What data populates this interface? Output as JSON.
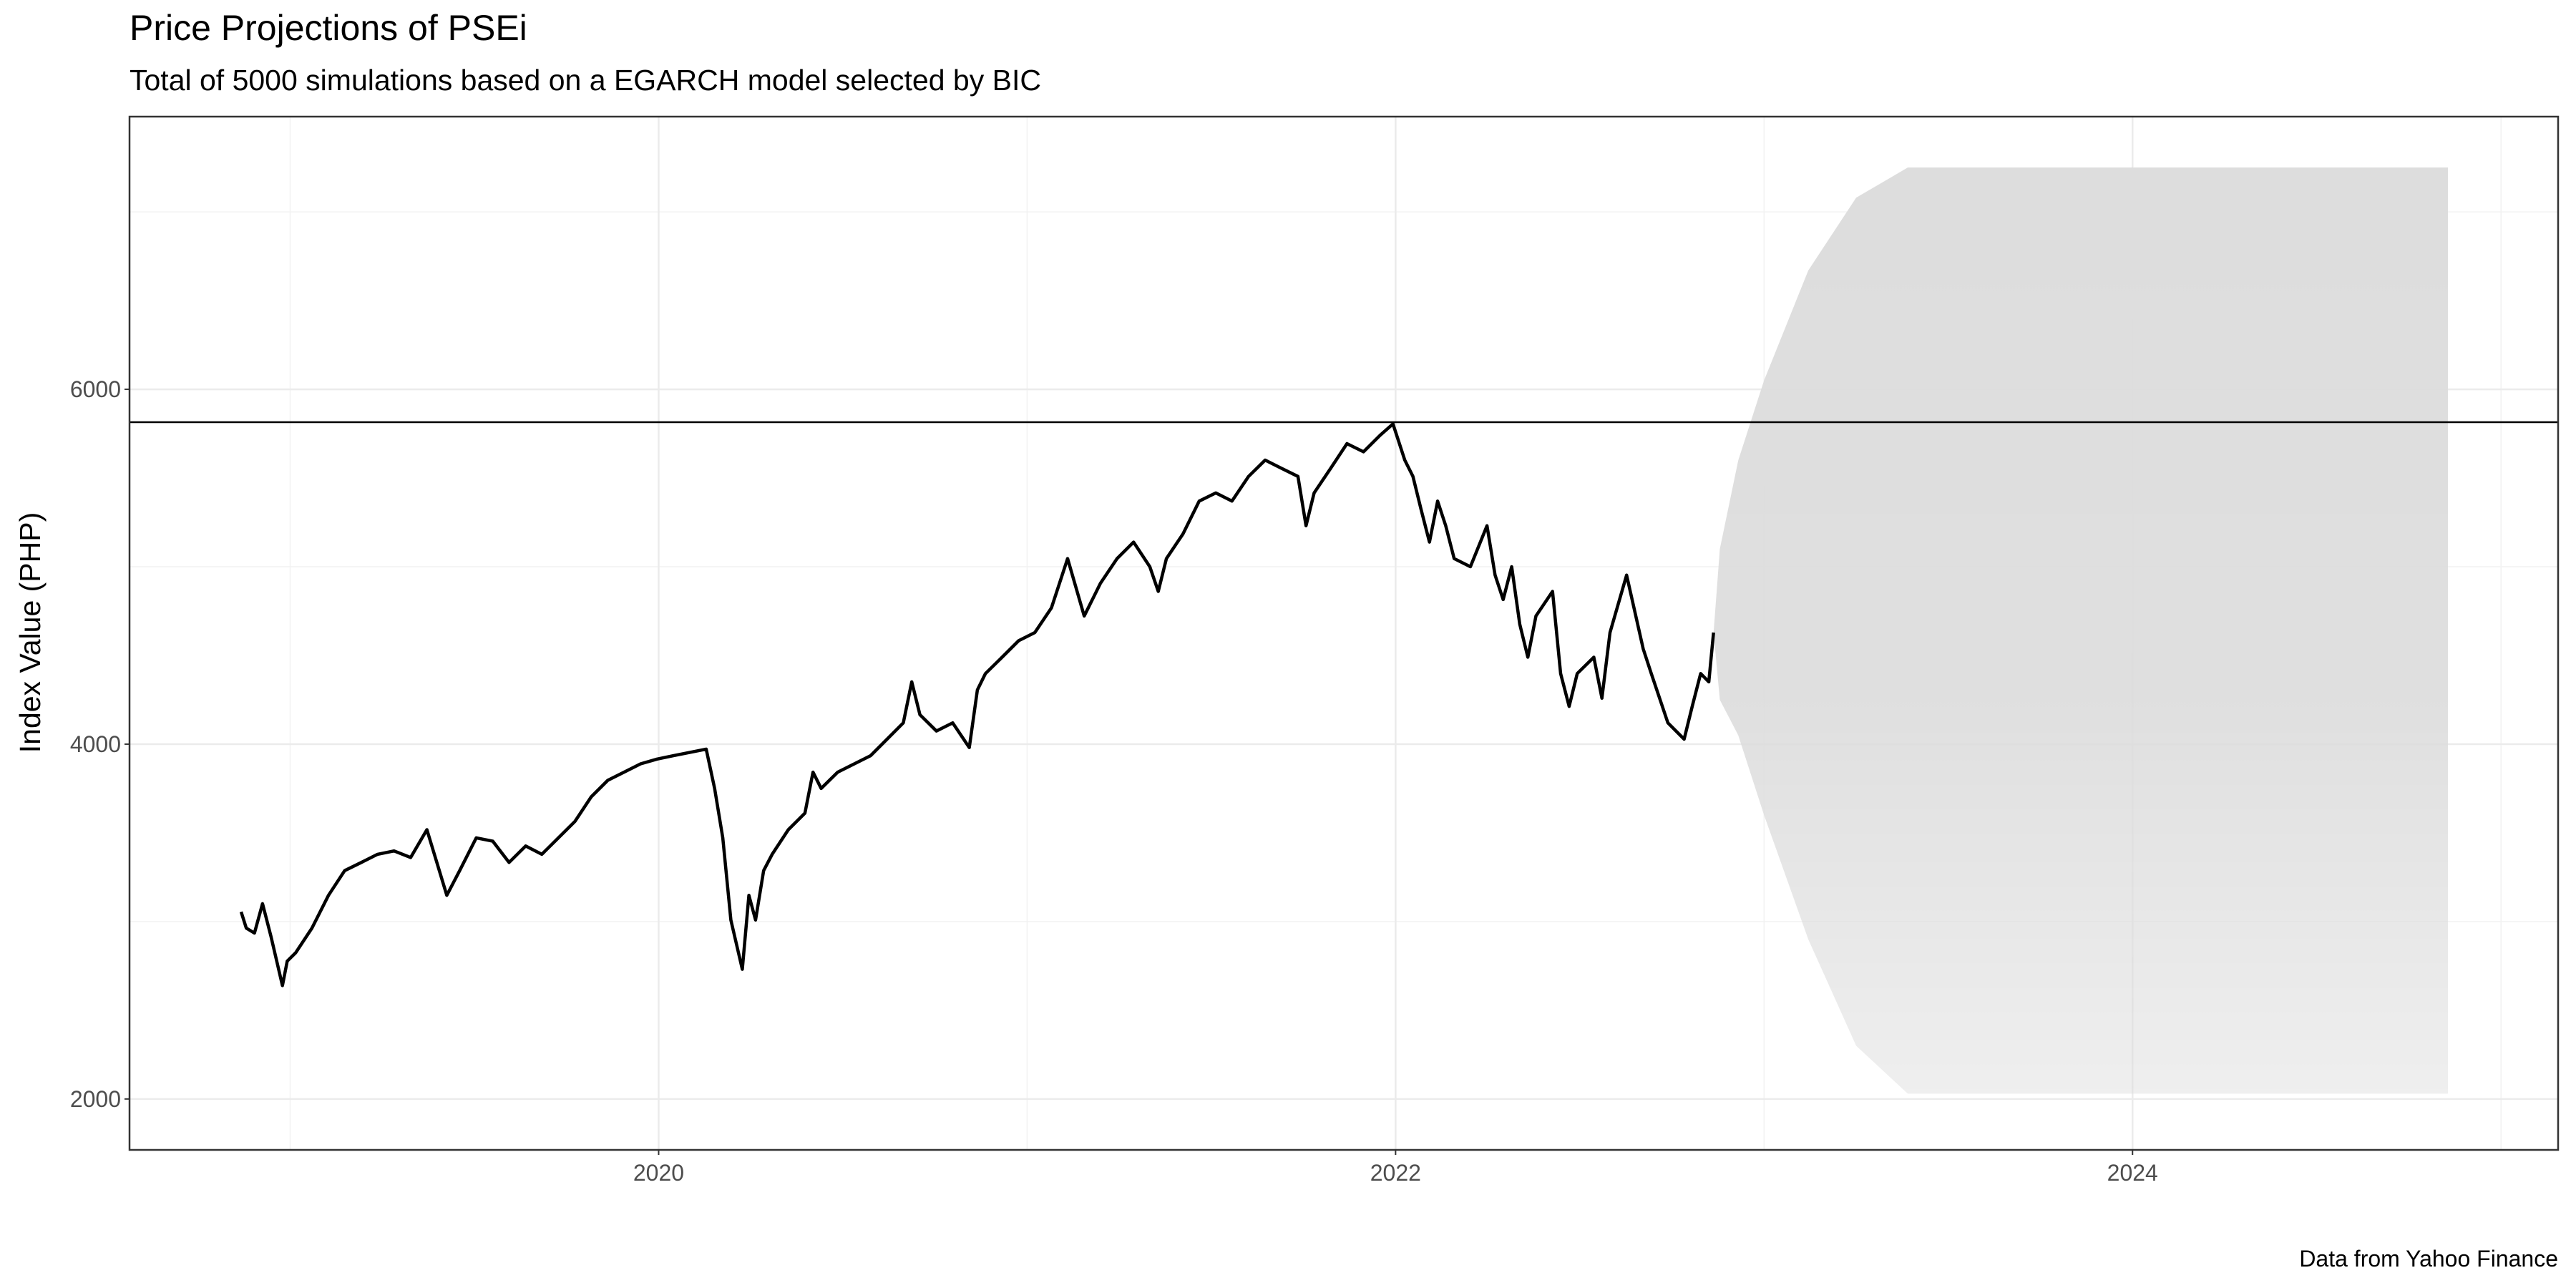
{
  "chart_data": {
    "type": "line",
    "title": "Price Projections of PSEi",
    "subtitle": "Total of 5000 simulations based on a EGARCH model selected by BIC",
    "y_label": "Index Value (PHP)",
    "caption": "Data from Yahoo Finance",
    "xlim": [
      2018.564,
      2025.155
    ],
    "ylim": [
      1713,
      7537
    ],
    "xticks": [
      2020,
      2022,
      2024
    ],
    "yticks": [
      2000,
      4000,
      6000
    ],
    "grid": true,
    "hline": {
      "value": 5815,
      "color": "#000000"
    },
    "series": [
      {
        "color": "#000000",
        "x": [
          2018.867,
          2018.881,
          2018.903,
          2018.925,
          2018.948,
          2018.979,
          2018.992,
          2019.015,
          2019.059,
          2019.104,
          2019.148,
          2019.193,
          2019.237,
          2019.282,
          2019.327,
          2019.371,
          2019.425,
          2019.46,
          2019.505,
          2019.55,
          2019.594,
          2019.639,
          2019.683,
          2019.728,
          2019.773,
          2019.817,
          2019.862,
          2019.906,
          2019.951,
          2019.996,
          2020.04,
          2020.129,
          2020.152,
          2020.174,
          2020.196,
          2020.227,
          2020.245,
          2020.263,
          2020.285,
          2020.308,
          2020.352,
          2020.397,
          2020.419,
          2020.441,
          2020.486,
          2020.531,
          2020.575,
          2020.62,
          2020.664,
          2020.687,
          2020.709,
          2020.754,
          2020.798,
          2020.843,
          2020.865,
          2020.887,
          2020.932,
          2020.977,
          2021.021,
          2021.066,
          2021.11,
          2021.155,
          2021.199,
          2021.244,
          2021.289,
          2021.333,
          2021.356,
          2021.378,
          2021.423,
          2021.467,
          2021.512,
          2021.556,
          2021.601,
          2021.646,
          2021.69,
          2021.735,
          2021.757,
          2021.779,
          2021.824,
          2021.868,
          2021.913,
          2021.958,
          2021.993,
          2022.025,
          2022.047,
          2022.069,
          2022.092,
          2022.114,
          2022.136,
          2022.159,
          2022.203,
          2022.248,
          2022.27,
          2022.292,
          2022.315,
          2022.337,
          2022.359,
          2022.381,
          2022.426,
          2022.448,
          2022.471,
          2022.493,
          2022.538,
          2022.56,
          2022.582,
          2022.627,
          2022.672,
          2022.694,
          2022.739,
          2022.783,
          2022.805,
          2022.828,
          2022.85,
          2022.863
        ],
        "values": [
          3055,
          2963,
          2935,
          3101,
          2916,
          2639,
          2777,
          2824,
          2963,
          3148,
          3287,
          3333,
          3379,
          3398,
          3361,
          3518,
          3148,
          3287,
          3472,
          3453,
          3333,
          3426,
          3379,
          3472,
          3565,
          3703,
          3796,
          3842,
          3889,
          3916,
          3935,
          3972,
          3750,
          3472,
          3009,
          2731,
          3148,
          3009,
          3287,
          3379,
          3518,
          3611,
          3842,
          3750,
          3842,
          3889,
          3935,
          4028,
          4120,
          4351,
          4166,
          4074,
          4120,
          3981,
          4305,
          4398,
          4490,
          4583,
          4629,
          4768,
          5046,
          4722,
          4907,
          5046,
          5139,
          5000,
          4861,
          5046,
          5185,
          5370,
          5416,
          5370,
          5509,
          5601,
          5555,
          5509,
          5231,
          5416,
          5555,
          5694,
          5648,
          5741,
          5805,
          5601,
          5509,
          5324,
          5139,
          5370,
          5231,
          5046,
          5000,
          5231,
          4953,
          4815,
          5000,
          4676,
          4490,
          4722,
          4861,
          4398,
          4213,
          4398,
          4490,
          4259,
          4629,
          4953,
          4537,
          4398,
          4120,
          4028,
          4213,
          4398,
          4351,
          4629
        ]
      }
    ],
    "band": {
      "color": "#dcdcdc",
      "x": [
        2022.863,
        2022.88,
        2022.93,
        2023.0,
        2023.12,
        2023.25,
        2023.39,
        2024.856
      ],
      "upper": [
        4629,
        5100,
        5600,
        6050,
        6670,
        7080,
        7250,
        7250
      ],
      "lower": [
        4629,
        4250,
        4050,
        3600,
        2900,
        2300,
        2030,
        2030
      ]
    }
  }
}
